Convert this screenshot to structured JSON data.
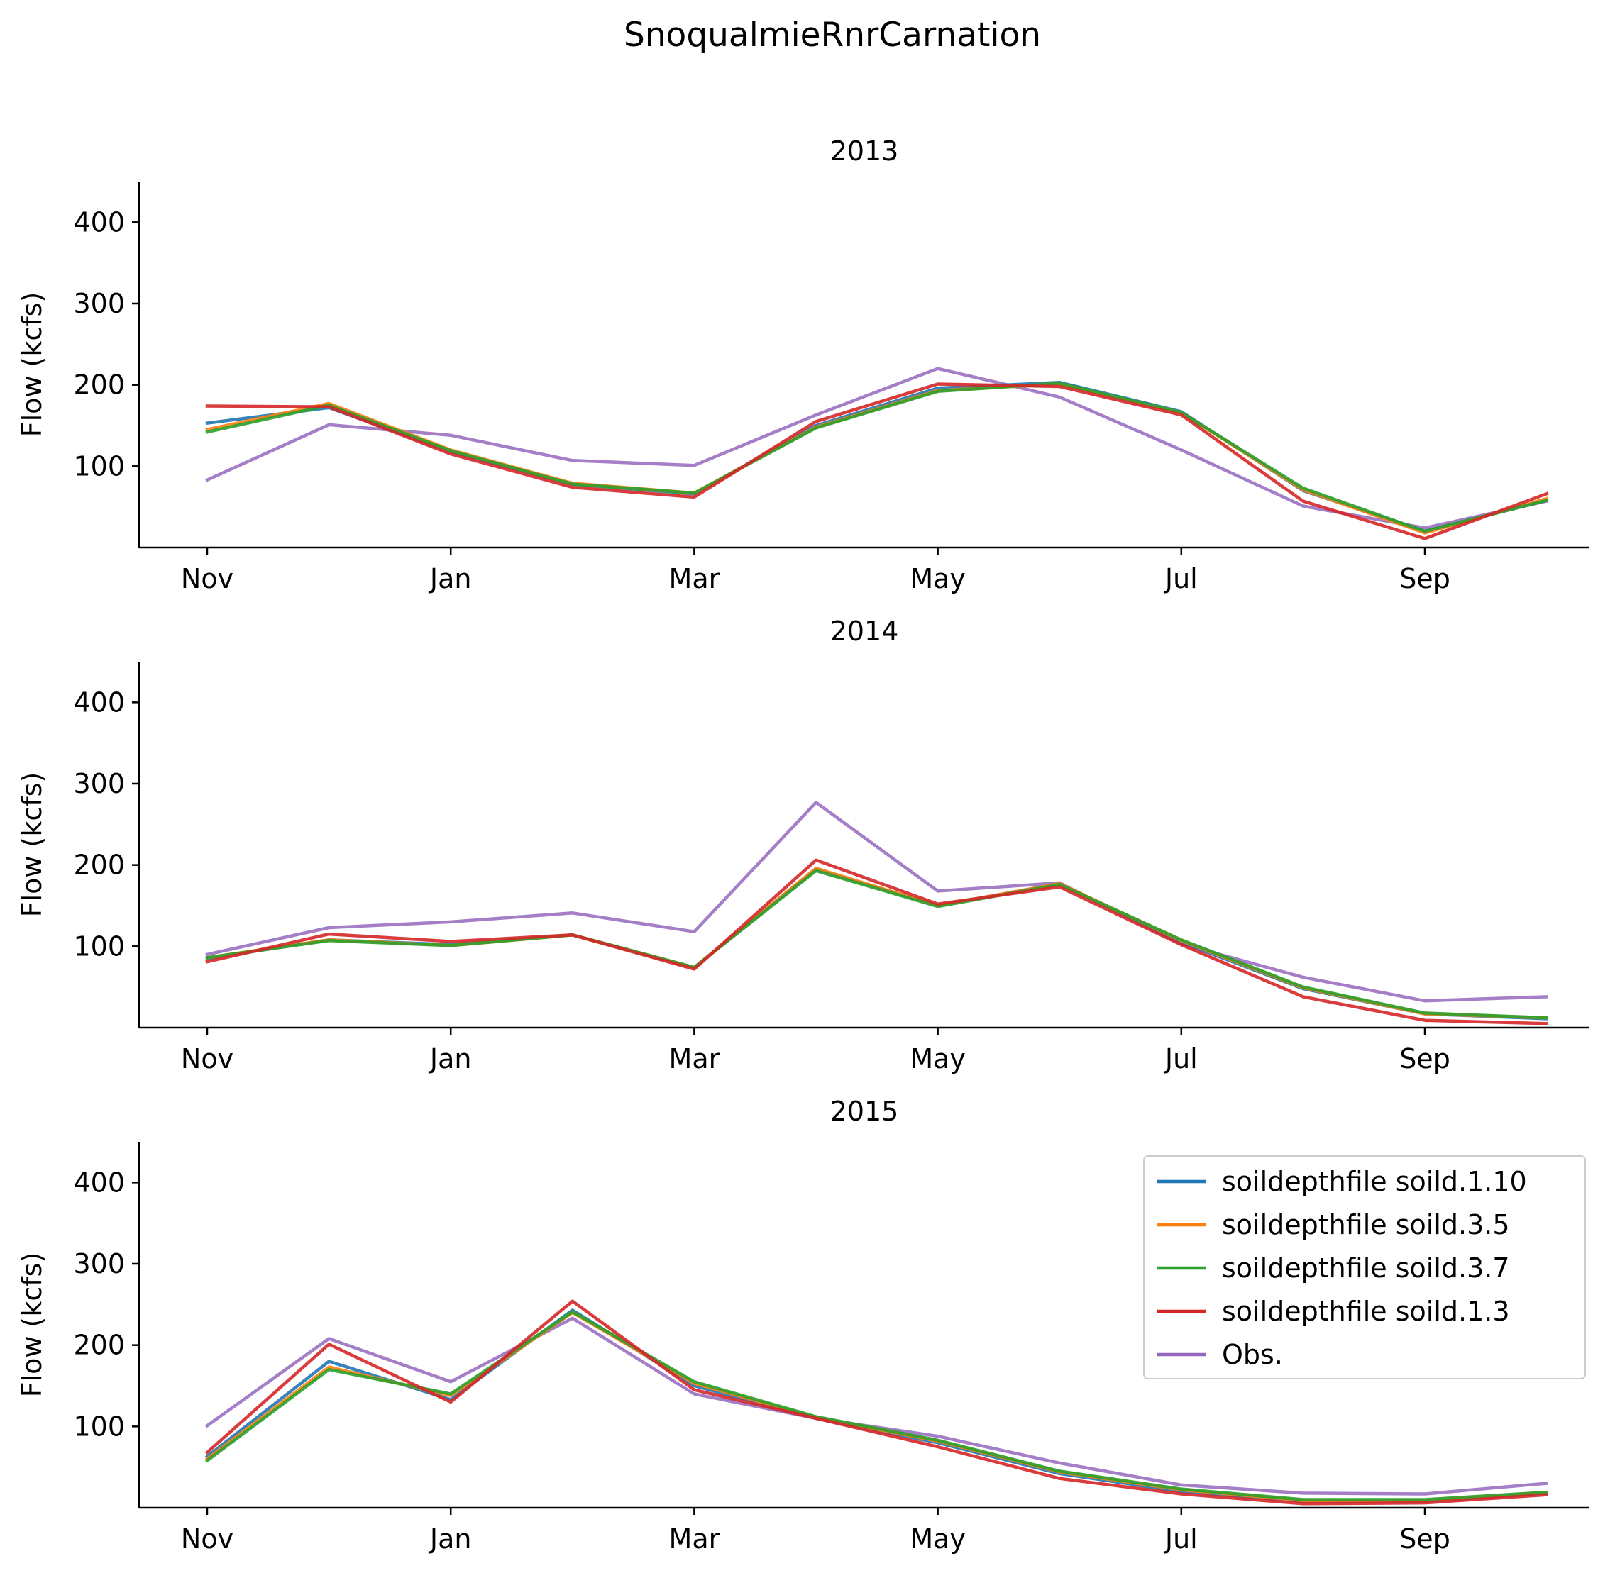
{
  "chart_data": {
    "type": "line",
    "title": "SnoqualmieRnrCarnation",
    "ylabel": "Flow (kcfs)",
    "ylim": [
      0,
      450
    ],
    "yticks": [
      100,
      200,
      300,
      400
    ],
    "xticks": [
      {
        "label": "Nov",
        "pos": 0
      },
      {
        "label": "Jan",
        "pos": 2
      },
      {
        "label": "Mar",
        "pos": 4
      },
      {
        "label": "May",
        "pos": 6
      },
      {
        "label": "Jul",
        "pos": 8
      },
      {
        "label": "Sep",
        "pos": 10
      }
    ],
    "x": [
      0,
      1,
      2,
      3,
      4,
      5,
      6,
      7,
      8,
      9,
      10,
      11
    ],
    "legend": {
      "placement": "upper right",
      "panel": 2
    },
    "series_styles": [
      {
        "name": "soildepthfile soild.1.10",
        "color": "#1f77b4"
      },
      {
        "name": "soildepthfile soild.3.5",
        "color": "#ff7f0e"
      },
      {
        "name": "soildepthfile soild.3.7",
        "color": "#2ca02c"
      },
      {
        "name": "soildepthfile soild.1.3",
        "color": "#d62728"
      },
      {
        "name": "Obs.",
        "color": "#9467bd"
      }
    ],
    "panels": [
      {
        "title": "2013",
        "series": [
          {
            "name": "soildepthfile soild.1.10",
            "values": [
              153,
              172,
              118,
              78,
              66,
              150,
              196,
              203,
              167,
              70,
              20,
              58
            ]
          },
          {
            "name": "soildepthfile soild.3.5",
            "values": [
              145,
              177,
              120,
              79,
              67,
              148,
              193,
              201,
              166,
              71,
              18,
              60
            ]
          },
          {
            "name": "soildepthfile soild.3.7",
            "values": [
              142,
              175,
              119,
              78,
              67,
              147,
              192,
              202,
              166,
              73,
              20,
              58
            ]
          },
          {
            "name": "soildepthfile soild.1.3",
            "values": [
              174,
              173,
              115,
              74,
              62,
              155,
              201,
              198,
              163,
              57,
              11,
              66
            ]
          },
          {
            "name": "Obs.",
            "values": [
              83,
              151,
              138,
              107,
              101,
              163,
              220,
              185,
              120,
              51,
              24,
              57
            ]
          }
        ]
      },
      {
        "title": "2014",
        "series": [
          {
            "name": "soildepthfile soild.1.10",
            "values": [
              85,
              108,
              102,
              114,
              74,
              195,
              150,
              177,
              105,
              48,
              17,
              11
            ]
          },
          {
            "name": "soildepthfile soild.3.5",
            "values": [
              86,
              108,
              101,
              114,
              74,
              196,
              150,
              177,
              107,
              49,
              17,
              12
            ]
          },
          {
            "name": "soildepthfile soild.3.7",
            "values": [
              86,
              107,
              101,
              114,
              74,
              193,
              149,
              176,
              108,
              50,
              18,
              12
            ]
          },
          {
            "name": "soildepthfile soild.1.3",
            "values": [
              81,
              115,
              106,
              114,
              72,
              206,
              152,
              173,
              102,
              38,
              9,
              5
            ]
          },
          {
            "name": "Obs.",
            "values": [
              90,
              123,
              130,
              141,
              118,
              277,
              168,
              178,
              103,
              62,
              33,
              38
            ]
          }
        ]
      },
      {
        "title": "2015",
        "series": [
          {
            "name": "soildepthfile soild.1.10",
            "values": [
              63,
              180,
              133,
              243,
              150,
              110,
              80,
              42,
              20,
              8,
              8,
              18
            ]
          },
          {
            "name": "soildepthfile soild.3.5",
            "values": [
              60,
              173,
              138,
              240,
              153,
              111,
              82,
              44,
              22,
              9,
              9,
              19
            ]
          },
          {
            "name": "soildepthfile soild.3.7",
            "values": [
              58,
              170,
              140,
              241,
              155,
              112,
              83,
              45,
              23,
              10,
              10,
              19
            ]
          },
          {
            "name": "soildepthfile soild.1.3",
            "values": [
              68,
              201,
              130,
              254,
              145,
              110,
              75,
              36,
              17,
              5,
              6,
              16
            ]
          },
          {
            "name": "Obs.",
            "values": [
              101,
              208,
              155,
              233,
              140,
              110,
              88,
              55,
              28,
              18,
              17,
              30
            ]
          }
        ]
      }
    ]
  }
}
